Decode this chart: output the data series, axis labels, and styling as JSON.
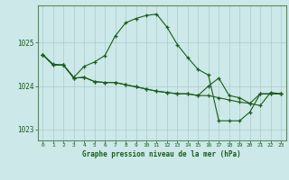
{
  "title": "Graphe pression niveau de la mer (hPa)",
  "bg_color": "#cce8e8",
  "grid_color": "#aacccc",
  "line_color": "#1a5c1a",
  "xlim": [
    -0.5,
    23.5
  ],
  "ylim": [
    1022.75,
    1025.85
  ],
  "yticks": [
    1023,
    1024,
    1025
  ],
  "xticks": [
    0,
    1,
    2,
    3,
    4,
    5,
    6,
    7,
    8,
    9,
    10,
    11,
    12,
    13,
    14,
    15,
    16,
    17,
    18,
    19,
    20,
    21,
    22,
    23
  ],
  "series": [
    [
      1024.72,
      1024.5,
      1024.48,
      1024.2,
      1024.45,
      1024.55,
      1024.7,
      1025.15,
      1025.45,
      1025.55,
      1025.62,
      1025.65,
      1025.35,
      1024.95,
      1024.65,
      1024.38,
      1024.25,
      1023.2,
      1023.2,
      1023.2,
      1023.4,
      1023.82,
      1023.82,
      1023.82
    ],
    [
      1024.72,
      1024.48,
      1024.48,
      1024.18,
      1024.2,
      1024.1,
      1024.08,
      1024.08,
      1024.03,
      1023.98,
      1023.93,
      1023.88,
      1023.85,
      1023.82,
      1023.82,
      1023.78,
      1023.78,
      1023.73,
      1023.68,
      1023.63,
      1023.6,
      1023.55,
      1023.85,
      1023.82
    ],
    [
      1024.72,
      1024.48,
      1024.48,
      1024.18,
      1024.2,
      1024.1,
      1024.08,
      1024.08,
      1024.03,
      1023.98,
      1023.93,
      1023.88,
      1023.85,
      1023.82,
      1023.82,
      1023.78,
      1024.0,
      1024.18,
      1023.78,
      1023.73,
      1023.6,
      1023.82,
      1023.82,
      1023.82
    ]
  ]
}
